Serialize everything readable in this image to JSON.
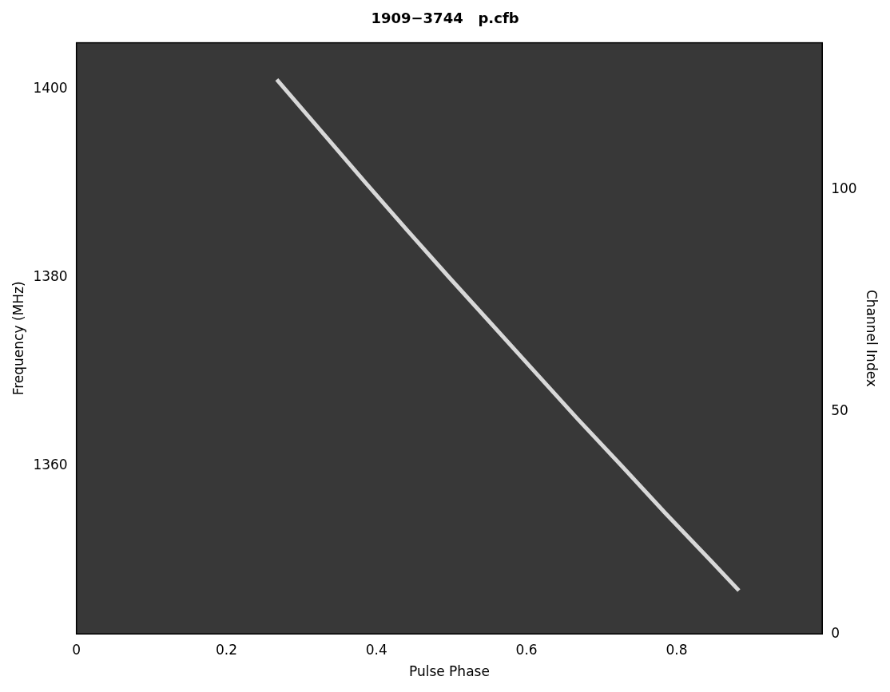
{
  "chart_data": {
    "type": "line",
    "title": "1909−3744   p.cfb",
    "x_label": "Pulse Phase",
    "y_label": "Frequency (MHz)",
    "y2_label": "Channel Index",
    "x": [
      0.267,
      0.332,
      0.386,
      0.441,
      0.497,
      0.554,
      0.611,
      0.668,
      0.727,
      0.785,
      0.845,
      0.883
    ],
    "series": [
      {
        "color": "#d8d8d8",
        "values": [
          1401,
          1395,
          1390,
          1385,
          1380,
          1375,
          1370,
          1365,
          1360,
          1355,
          1350,
          1346.8
        ]
      }
    ],
    "xlim": [
      0,
      0.994
    ],
    "xticks": [
      0,
      0.2,
      0.4,
      0.6,
      0.8
    ],
    "ylim": [
      1342.2,
      1404.9
    ],
    "yticks": [
      1360,
      1380,
      1400
    ],
    "y2lim": [
      0,
      133
    ],
    "y2ticks": [
      0,
      50,
      100
    ],
    "grid": false
  }
}
